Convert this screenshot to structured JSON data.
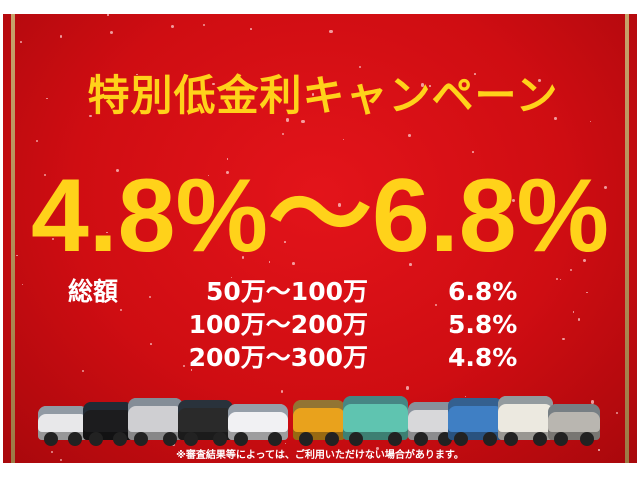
{
  "campaign": {
    "title": "特別低金利キャンペーン",
    "rate_range": "4.8%～6.8%",
    "total_label": "総額",
    "rows": [
      {
        "range": "50万～100万",
        "rate": "6.8%"
      },
      {
        "range": "100万～200万",
        "rate": "5.8%"
      },
      {
        "range": "200万～300万",
        "rate": "4.8%"
      }
    ],
    "note": "※審査結果等によっては、ご利用いただけない場合があります。"
  },
  "colors": {
    "background": "#d10f14",
    "headline": "#ffd21a",
    "text": "#ffffff",
    "border_gold": "#c8a26a"
  }
}
